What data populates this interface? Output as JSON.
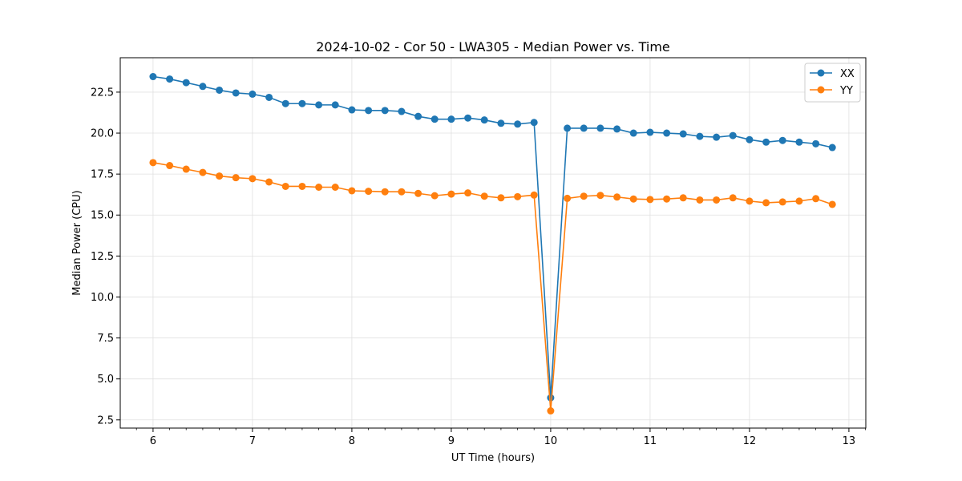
{
  "chart_data": {
    "type": "line",
    "title": "2024-10-02 - Cor 50 - LWA305 - Median Power vs. Time",
    "xlabel": "UT Time (hours)",
    "ylabel": "Median Power (CPU)",
    "xlim": [
      5.67,
      13.17
    ],
    "ylim": [
      2.0,
      24.6
    ],
    "xticks": [
      6,
      7,
      8,
      9,
      10,
      11,
      12,
      13
    ],
    "xtick_labels": [
      "6",
      "7",
      "8",
      "9",
      "10",
      "11",
      "12",
      "13"
    ],
    "yticks": [
      2.5,
      5.0,
      7.5,
      10.0,
      12.5,
      15.0,
      17.5,
      20.0,
      22.5
    ],
    "ytick_labels": [
      "2.5",
      "5.0",
      "7.5",
      "10.0",
      "12.5",
      "15.0",
      "17.5",
      "20.0",
      "22.5"
    ],
    "grid": true,
    "legend": "top-right",
    "x": [
      6.0,
      6.167,
      6.333,
      6.5,
      6.667,
      6.833,
      7.0,
      7.167,
      7.333,
      7.5,
      7.667,
      7.833,
      8.0,
      8.167,
      8.333,
      8.5,
      8.667,
      8.833,
      9.0,
      9.167,
      9.333,
      9.5,
      9.667,
      9.833,
      10.0,
      10.167,
      10.333,
      10.5,
      10.667,
      10.833,
      11.0,
      11.167,
      11.333,
      11.5,
      11.667,
      11.833,
      12.0,
      12.167,
      12.333,
      12.5,
      12.667,
      12.833
    ],
    "series": [
      {
        "name": "XX",
        "color": "#1f77b4",
        "values": [
          23.45,
          23.3,
          23.08,
          22.85,
          22.62,
          22.45,
          22.38,
          22.18,
          21.8,
          21.8,
          21.72,
          21.72,
          21.42,
          21.38,
          21.38,
          21.32,
          21.02,
          20.85,
          20.85,
          20.92,
          20.8,
          20.6,
          20.55,
          20.65,
          3.85,
          20.3,
          20.3,
          20.3,
          20.25,
          20.0,
          20.05,
          20.0,
          19.95,
          19.8,
          19.75,
          19.85,
          19.6,
          19.45,
          19.55,
          19.45,
          19.35,
          19.12
        ]
      },
      {
        "name": "YY",
        "color": "#ff7f0e",
        "values": [
          18.2,
          18.02,
          17.8,
          17.6,
          17.38,
          17.28,
          17.22,
          17.02,
          16.75,
          16.75,
          16.7,
          16.7,
          16.48,
          16.45,
          16.42,
          16.42,
          16.32,
          16.18,
          16.28,
          16.35,
          16.15,
          16.05,
          16.12,
          16.22,
          3.05,
          16.02,
          16.15,
          16.2,
          16.1,
          15.98,
          15.95,
          15.98,
          16.05,
          15.92,
          15.92,
          16.05,
          15.85,
          15.75,
          15.8,
          15.85,
          16.0,
          15.65
        ]
      }
    ]
  }
}
